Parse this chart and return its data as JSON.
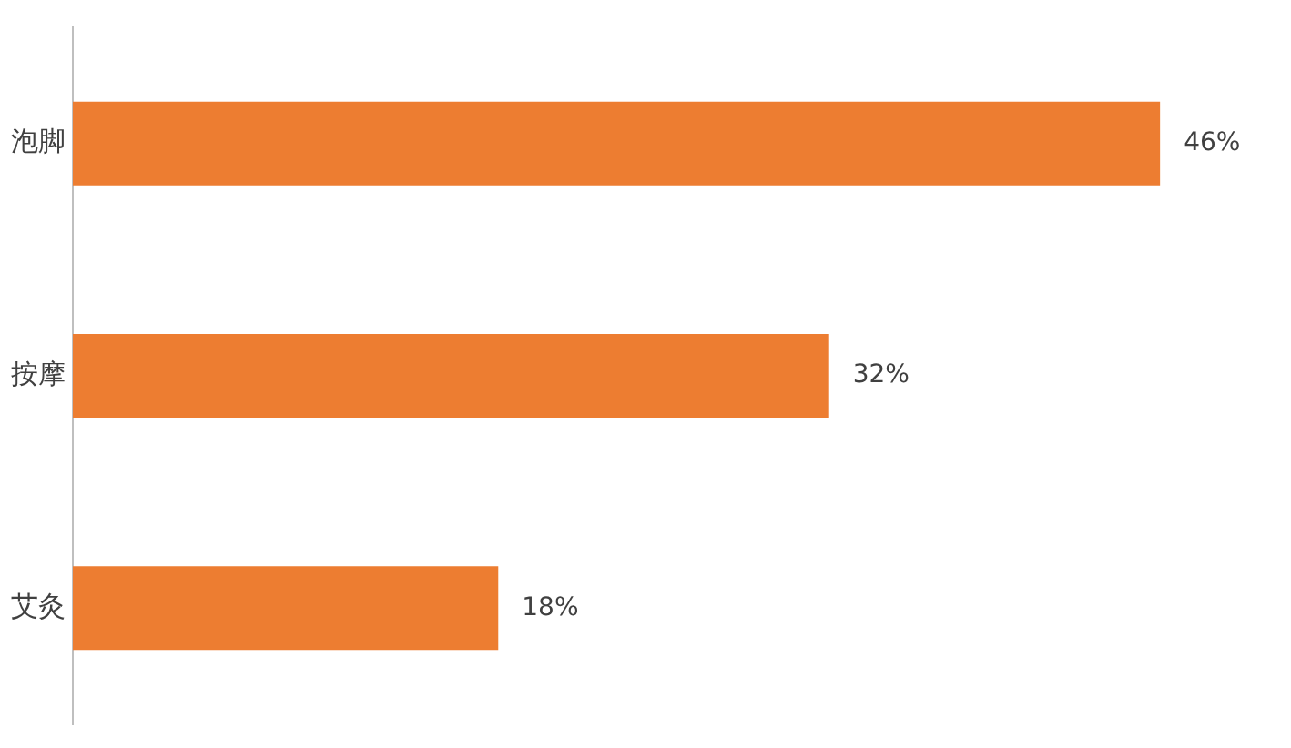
{
  "chart_data": {
    "type": "bar",
    "orientation": "horizontal",
    "categories": [
      "泡脚",
      "按摩",
      "艾灸"
    ],
    "values": [
      46,
      32,
      18
    ],
    "value_labels": [
      "46%",
      "32%",
      "18%"
    ],
    "color": "#ed7d31",
    "grid": false,
    "legend": false
  }
}
